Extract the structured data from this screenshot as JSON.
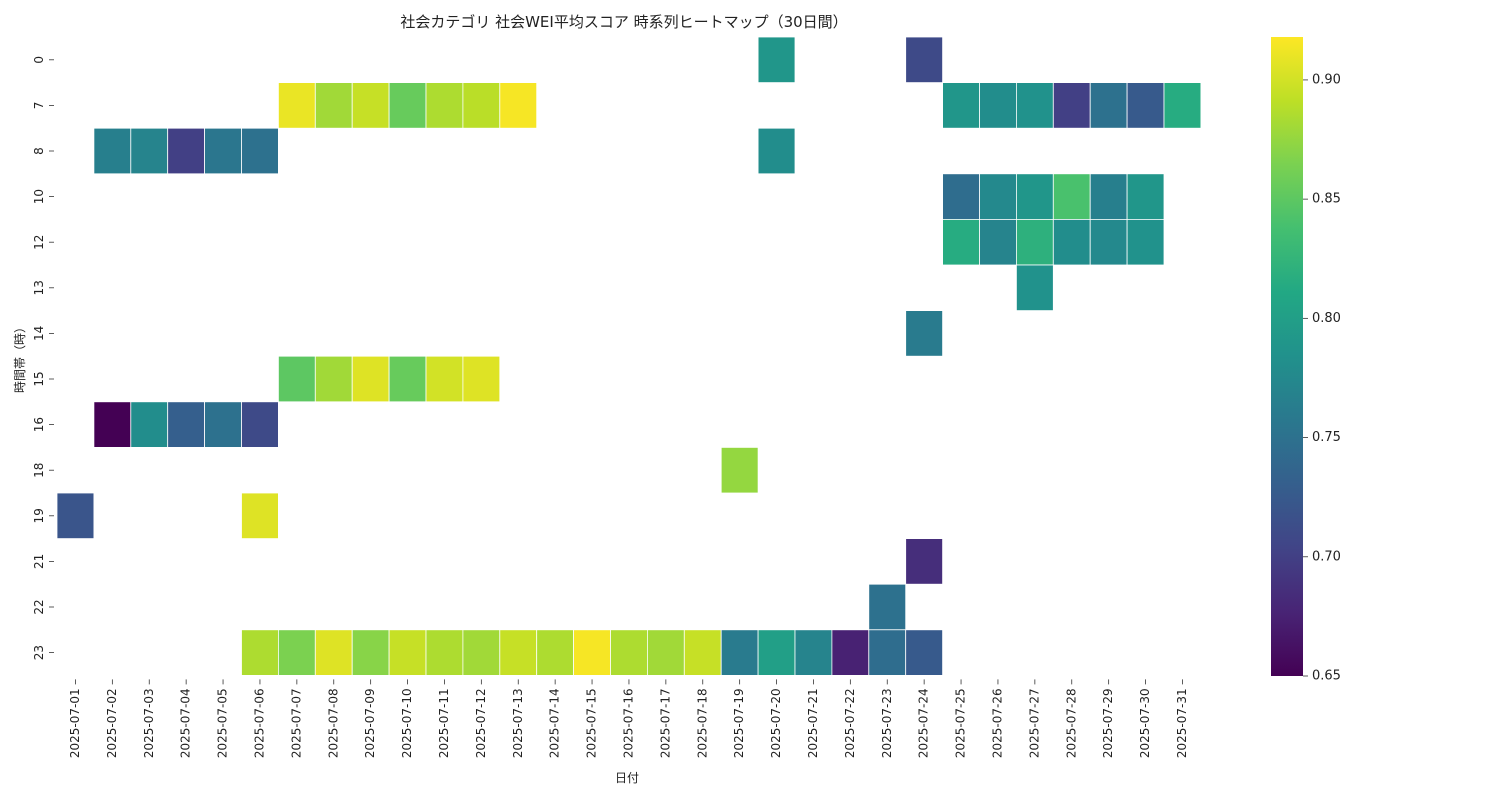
{
  "chart_data": {
    "type": "heatmap",
    "title": "社会カテゴリ 社会WEI平均スコア 時系列ヒートマップ（30日間）",
    "xlabel": "日付",
    "ylabel": "時間帯（時）",
    "colormap": "viridis",
    "vmin": 0.65,
    "vmax": 0.918,
    "colorbar_ticks": [
      "0.65",
      "0.70",
      "0.75",
      "0.80",
      "0.85",
      "0.90"
    ],
    "x_categories": [
      "2025-07-01",
      "2025-07-02",
      "2025-07-03",
      "2025-07-04",
      "2025-07-05",
      "2025-07-06",
      "2025-07-07",
      "2025-07-08",
      "2025-07-09",
      "2025-07-10",
      "2025-07-11",
      "2025-07-12",
      "2025-07-13",
      "2025-07-14",
      "2025-07-15",
      "2025-07-16",
      "2025-07-17",
      "2025-07-18",
      "2025-07-19",
      "2025-07-20",
      "2025-07-21",
      "2025-07-22",
      "2025-07-23",
      "2025-07-24",
      "2025-07-25",
      "2025-07-26",
      "2025-07-27",
      "2025-07-28",
      "2025-07-29",
      "2025-07-30",
      "2025-07-31"
    ],
    "y_categories": [
      "0",
      "7",
      "8",
      "10",
      "12",
      "13",
      "14",
      "15",
      "16",
      "18",
      "19",
      "21",
      "22",
      "23"
    ],
    "cells": [
      {
        "x": "2025-07-20",
        "y": "0",
        "value": 0.79
      },
      {
        "x": "2025-07-24",
        "y": "0",
        "value": 0.71
      },
      {
        "x": "2025-07-07",
        "y": "7",
        "value": 0.91
      },
      {
        "x": "2025-07-08",
        "y": "7",
        "value": 0.88
      },
      {
        "x": "2025-07-09",
        "y": "7",
        "value": 0.895
      },
      {
        "x": "2025-07-10",
        "y": "7",
        "value": 0.855
      },
      {
        "x": "2025-07-11",
        "y": "7",
        "value": 0.885
      },
      {
        "x": "2025-07-12",
        "y": "7",
        "value": 0.89
      },
      {
        "x": "2025-07-13",
        "y": "7",
        "value": 0.915
      },
      {
        "x": "2025-07-25",
        "y": "7",
        "value": 0.79
      },
      {
        "x": "2025-07-26",
        "y": "7",
        "value": 0.78
      },
      {
        "x": "2025-07-27",
        "y": "7",
        "value": 0.785
      },
      {
        "x": "2025-07-28",
        "y": "7",
        "value": 0.7
      },
      {
        "x": "2025-07-29",
        "y": "7",
        "value": 0.75
      },
      {
        "x": "2025-07-30",
        "y": "7",
        "value": 0.725
      },
      {
        "x": "2025-07-31",
        "y": "7",
        "value": 0.815
      },
      {
        "x": "2025-07-02",
        "y": "8",
        "value": 0.765
      },
      {
        "x": "2025-07-03",
        "y": "8",
        "value": 0.77
      },
      {
        "x": "2025-07-04",
        "y": "8",
        "value": 0.7
      },
      {
        "x": "2025-07-05",
        "y": "8",
        "value": 0.755
      },
      {
        "x": "2025-07-06",
        "y": "8",
        "value": 0.75
      },
      {
        "x": "2025-07-20",
        "y": "8",
        "value": 0.78
      },
      {
        "x": "2025-07-25",
        "y": "10",
        "value": 0.745
      },
      {
        "x": "2025-07-26",
        "y": "10",
        "value": 0.775
      },
      {
        "x": "2025-07-27",
        "y": "10",
        "value": 0.79
      },
      {
        "x": "2025-07-28",
        "y": "10",
        "value": 0.84
      },
      {
        "x": "2025-07-29",
        "y": "10",
        "value": 0.765
      },
      {
        "x": "2025-07-30",
        "y": "10",
        "value": 0.79
      },
      {
        "x": "2025-07-25",
        "y": "12",
        "value": 0.815
      },
      {
        "x": "2025-07-26",
        "y": "12",
        "value": 0.77
      },
      {
        "x": "2025-07-27",
        "y": "12",
        "value": 0.82
      },
      {
        "x": "2025-07-28",
        "y": "12",
        "value": 0.78
      },
      {
        "x": "2025-07-29",
        "y": "12",
        "value": 0.775
      },
      {
        "x": "2025-07-30",
        "y": "12",
        "value": 0.785
      },
      {
        "x": "2025-07-27",
        "y": "13",
        "value": 0.785
      },
      {
        "x": "2025-07-24",
        "y": "14",
        "value": 0.76
      },
      {
        "x": "2025-07-07",
        "y": "15",
        "value": 0.85
      },
      {
        "x": "2025-07-08",
        "y": "15",
        "value": 0.88
      },
      {
        "x": "2025-07-09",
        "y": "15",
        "value": 0.905
      },
      {
        "x": "2025-07-10",
        "y": "15",
        "value": 0.855
      },
      {
        "x": "2025-07-11",
        "y": "15",
        "value": 0.9
      },
      {
        "x": "2025-07-12",
        "y": "15",
        "value": 0.905
      },
      {
        "x": "2025-07-02",
        "y": "16",
        "value": 0.65
      },
      {
        "x": "2025-07-03",
        "y": "16",
        "value": 0.78
      },
      {
        "x": "2025-07-04",
        "y": "16",
        "value": 0.73
      },
      {
        "x": "2025-07-05",
        "y": "16",
        "value": 0.75
      },
      {
        "x": "2025-07-06",
        "y": "16",
        "value": 0.71
      },
      {
        "x": "2025-07-19",
        "y": "18",
        "value": 0.875
      },
      {
        "x": "2025-07-01",
        "y": "19",
        "value": 0.72
      },
      {
        "x": "2025-07-06",
        "y": "19",
        "value": 0.905
      },
      {
        "x": "2025-07-24",
        "y": "21",
        "value": 0.685
      },
      {
        "x": "2025-07-23",
        "y": "22",
        "value": 0.75
      },
      {
        "x": "2025-07-06",
        "y": "23",
        "value": 0.885
      },
      {
        "x": "2025-07-07",
        "y": "23",
        "value": 0.865
      },
      {
        "x": "2025-07-08",
        "y": "23",
        "value": 0.905
      },
      {
        "x": "2025-07-09",
        "y": "23",
        "value": 0.87
      },
      {
        "x": "2025-07-10",
        "y": "23",
        "value": 0.895
      },
      {
        "x": "2025-07-11",
        "y": "23",
        "value": 0.885
      },
      {
        "x": "2025-07-12",
        "y": "23",
        "value": 0.88
      },
      {
        "x": "2025-07-13",
        "y": "23",
        "value": 0.895
      },
      {
        "x": "2025-07-14",
        "y": "23",
        "value": 0.885
      },
      {
        "x": "2025-07-15",
        "y": "23",
        "value": 0.915
      },
      {
        "x": "2025-07-16",
        "y": "23",
        "value": 0.885
      },
      {
        "x": "2025-07-17",
        "y": "23",
        "value": 0.88
      },
      {
        "x": "2025-07-18",
        "y": "23",
        "value": 0.895
      },
      {
        "x": "2025-07-19",
        "y": "23",
        "value": 0.76
      },
      {
        "x": "2025-07-20",
        "y": "23",
        "value": 0.8
      },
      {
        "x": "2025-07-21",
        "y": "23",
        "value": 0.77
      },
      {
        "x": "2025-07-22",
        "y": "23",
        "value": 0.675
      },
      {
        "x": "2025-07-23",
        "y": "23",
        "value": 0.745
      },
      {
        "x": "2025-07-24",
        "y": "23",
        "value": 0.725
      }
    ]
  }
}
